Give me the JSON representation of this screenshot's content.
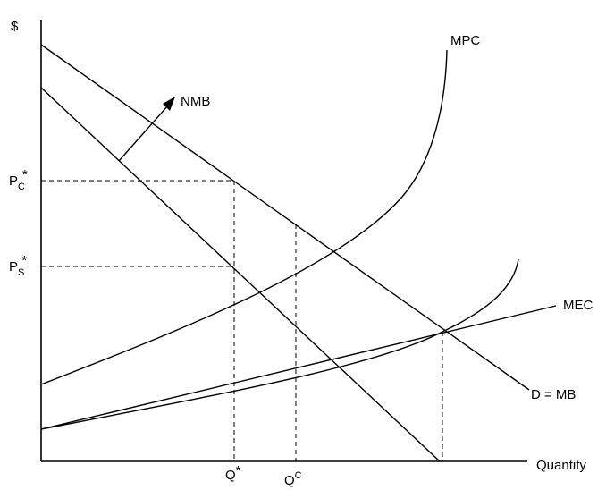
{
  "axes": {
    "y_label": "$",
    "x_label": "Quantity"
  },
  "curves": {
    "mpc": "MPC",
    "mec": "MEC",
    "demand": "D = MB",
    "nmb": "NMB"
  },
  "prices": {
    "pc": {
      "base": "P",
      "sub": "C",
      "star": "*"
    },
    "ps": {
      "base": "P",
      "sub": "S",
      "star": "*"
    }
  },
  "quantities": {
    "q_star": {
      "base": "Q",
      "star": "*"
    },
    "q_c": {
      "base": "Q",
      "sup": "C"
    }
  }
}
